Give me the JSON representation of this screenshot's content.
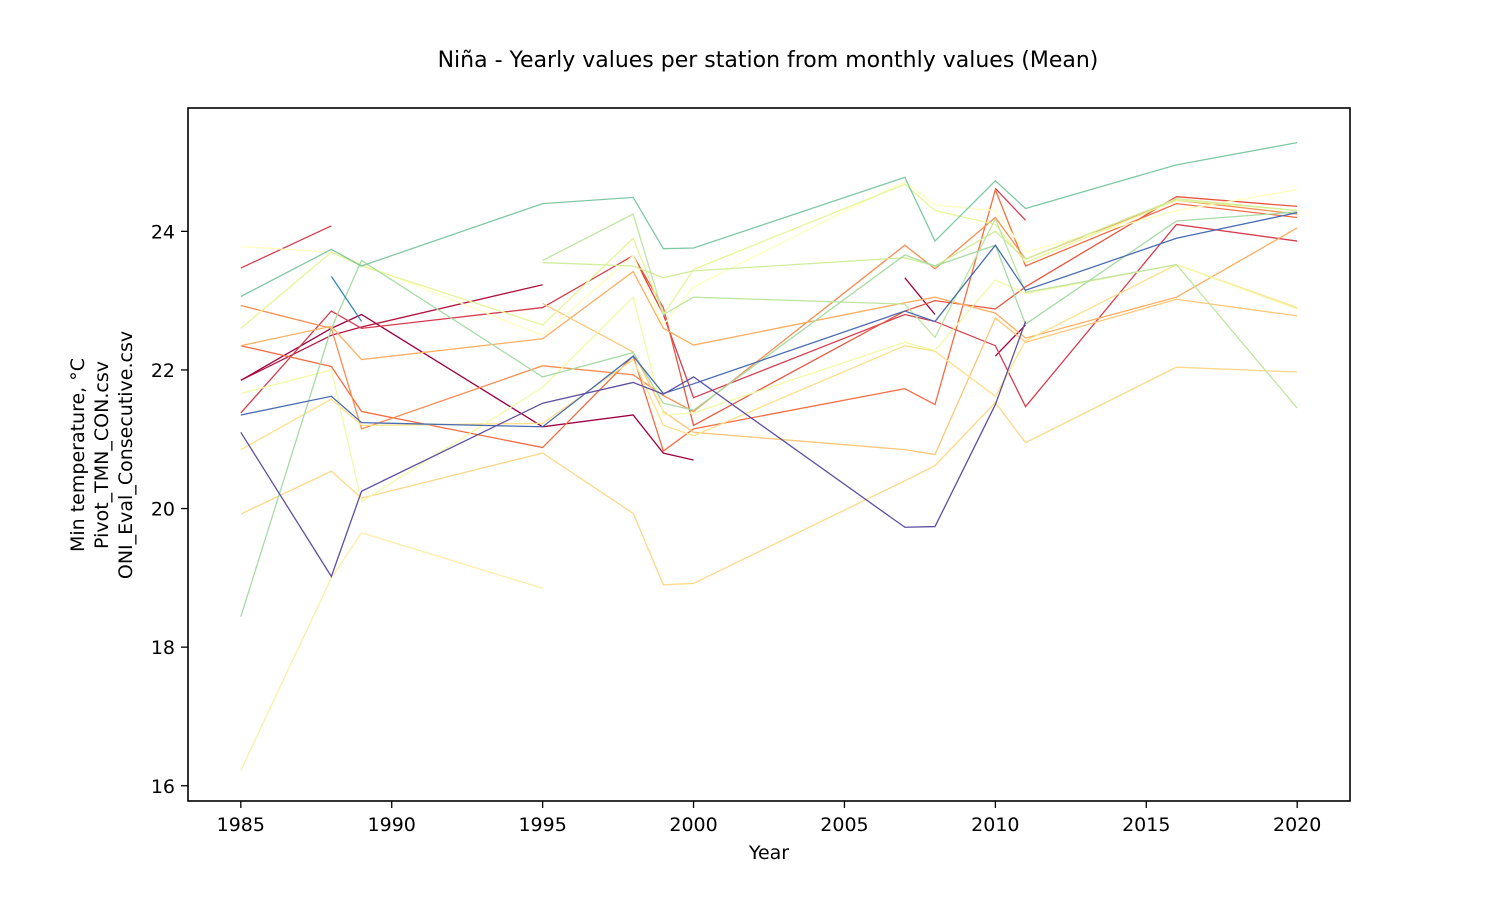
{
  "chart_data": {
    "type": "line",
    "title": "Niña - Yearly values per station from monthly values (Mean)",
    "xlabel": "Year",
    "ylabel_lines": [
      "Min temperature, °C",
      "Pivot_TMN_CON.csv",
      "ONI_Eval_Consecutive.csv"
    ],
    "xlim": [
      1983.25,
      2021.75
    ],
    "ylim": [
      15.78,
      25.78
    ],
    "xticks": [
      1985,
      1990,
      1995,
      2000,
      2005,
      2010,
      2015,
      2020
    ],
    "yticks": [
      16,
      18,
      20,
      22,
      24
    ],
    "grid": false,
    "series": [
      {
        "color": "#9e0142",
        "segments": [
          [
            [
              1985,
              21.85
            ],
            [
              1988,
              22.6
            ],
            [
              1989,
              22.8
            ],
            [
              1995,
              21.18
            ],
            [
              1998,
              21.35
            ],
            [
              1999,
              20.8
            ],
            [
              2000,
              20.7
            ]
          ],
          [
            [
              2007,
              23.33
            ],
            [
              2008,
              22.8
            ]
          ],
          [
            [
              2010,
              22.2
            ],
            [
              2011,
              22.65
            ]
          ]
        ]
      },
      {
        "color": "#b0123f",
        "segments": [
          [
            [
              1985,
              21.85
            ],
            [
              1988,
              22.5
            ],
            [
              1989,
              22.62
            ],
            [
              1995,
              23.23
            ]
          ]
        ]
      },
      {
        "color": "#d53e4f",
        "segments": [
          [
            [
              1985,
              23.47
            ],
            [
              1988,
              24.08
            ]
          ],
          [
            [
              1985,
              21.38
            ],
            [
              1988,
              22.85
            ],
            [
              1989,
              22.6
            ],
            [
              1995,
              22.9
            ],
            [
              1998,
              23.65
            ],
            [
              1999,
              22.8
            ],
            [
              2000,
              21.6
            ],
            [
              2007,
              22.8
            ],
            [
              2008,
              22.7
            ],
            [
              2010,
              22.35
            ],
            [
              2011,
              21.47
            ],
            [
              2016,
              24.1
            ],
            [
              2020,
              23.86
            ]
          ],
          [
            [
              2010,
              24.62
            ],
            [
              2011,
              24.16
            ]
          ]
        ]
      },
      {
        "color": "#e8553f",
        "segments": [
          [
            [
              1998,
              23.65
            ],
            [
              1999,
              22.9
            ],
            [
              2000,
              21.2
            ],
            [
              2007,
              22.85
            ],
            [
              2008,
              23.0
            ],
            [
              2010,
              22.88
            ],
            [
              2011,
              23.2
            ],
            [
              2016,
              24.5
            ],
            [
              2020,
              24.36
            ]
          ]
        ]
      },
      {
        "color": "#f46d43",
        "segments": [
          [
            [
              1985,
              22.35
            ],
            [
              1988,
              22.05
            ],
            [
              1989,
              21.4
            ],
            [
              1995,
              20.88
            ],
            [
              1998,
              22.2
            ],
            [
              1999,
              20.83
            ],
            [
              2000,
              21.15
            ],
            [
              2007,
              21.73
            ],
            [
              2008,
              21.5
            ],
            [
              2010,
              24.6
            ],
            [
              2011,
              23.5
            ],
            [
              2016,
              24.4
            ],
            [
              2020,
              24.2
            ]
          ]
        ]
      },
      {
        "color": "#f88d52",
        "segments": [
          [
            [
              1985,
              22.93
            ],
            [
              1988,
              22.6
            ],
            [
              1989,
              21.15
            ],
            [
              1995,
              22.06
            ],
            [
              1998,
              21.93
            ],
            [
              1999,
              21.63
            ],
            [
              2000,
              21.4
            ],
            [
              2007,
              23.8
            ],
            [
              2008,
              23.46
            ],
            [
              2010,
              24.2
            ],
            [
              2011,
              23.6
            ],
            [
              2016,
              24.45
            ],
            [
              2020,
              24.25
            ]
          ]
        ]
      },
      {
        "color": "#fdae61",
        "segments": [
          [
            [
              1985,
              22.35
            ],
            [
              1988,
              22.63
            ],
            [
              1989,
              22.15
            ],
            [
              1995,
              22.45
            ],
            [
              1998,
              23.42
            ],
            [
              1999,
              22.6
            ],
            [
              2000,
              22.36
            ],
            [
              2007,
              22.97
            ],
            [
              2008,
              23.05
            ],
            [
              2010,
              22.82
            ],
            [
              2011,
              22.46
            ],
            [
              2016,
              23.05
            ],
            [
              2020,
              24.05
            ]
          ]
        ]
      },
      {
        "color": "#fdc779",
        "segments": [
          [
            [
              1995,
              22.96
            ],
            [
              1998,
              22.26
            ],
            [
              1999,
              21.4
            ],
            [
              2000,
              21.1
            ],
            [
              2007,
              20.85
            ],
            [
              2008,
              20.78
            ],
            [
              2010,
              22.75
            ],
            [
              2011,
              22.4
            ],
            [
              2016,
              23.02
            ],
            [
              2020,
              22.78
            ]
          ]
        ]
      },
      {
        "color": "#fed88a",
        "segments": [
          [
            [
              1985,
              19.92
            ],
            [
              1988,
              20.54
            ],
            [
              1989,
              20.15
            ],
            [
              1995,
              20.8
            ],
            [
              1998,
              19.93
            ],
            [
              1999,
              18.9
            ],
            [
              2000,
              18.92
            ],
            [
              2007,
              20.4
            ],
            [
              2008,
              20.62
            ],
            [
              2010,
              21.53
            ],
            [
              2011,
              20.95
            ],
            [
              2016,
              22.04
            ],
            [
              2020,
              21.97
            ]
          ]
        ]
      },
      {
        "color": "#fee08b",
        "segments": [
          [
            [
              1985,
              20.85
            ],
            [
              1988,
              21.58
            ],
            [
              1989,
              21.2
            ],
            [
              1995,
              21.23
            ],
            [
              1998,
              22.15
            ],
            [
              1999,
              21.2
            ],
            [
              2000,
              21.05
            ],
            [
              2007,
              22.35
            ],
            [
              2008,
              22.27
            ],
            [
              2010,
              21.62
            ],
            [
              2011,
              22.42
            ],
            [
              2016,
              23.52
            ],
            [
              2020,
              22.9
            ]
          ]
        ]
      },
      {
        "color": "#feedaa",
        "segments": [
          [
            [
              1985,
              16.22
            ],
            [
              1988,
              19.0
            ],
            [
              1989,
              19.65
            ],
            [
              1995,
              18.85
            ]
          ]
        ]
      },
      {
        "color": "#ffffbf",
        "segments": [
          [
            [
              1985,
              23.78
            ],
            [
              1988,
              23.7
            ],
            [
              1995,
              22.5
            ],
            [
              1998,
              23.65
            ],
            [
              1999,
              22.65
            ],
            [
              2000,
              23.2
            ],
            [
              2007,
              24.72
            ],
            [
              2008,
              24.38
            ],
            [
              2010,
              24.3
            ],
            [
              2011,
              23.7
            ],
            [
              2016,
              24.3
            ],
            [
              2020,
              24.6
            ]
          ]
        ]
      },
      {
        "color": "#f2f9a8",
        "segments": [
          [
            [
              1985,
              21.66
            ],
            [
              1988,
              22.0
            ],
            [
              1989,
              20.1
            ],
            [
              1995,
              21.75
            ],
            [
              1998,
              23.05
            ],
            [
              1999,
              21.35
            ],
            [
              2000,
              21.38
            ],
            [
              2007,
              22.4
            ],
            [
              2008,
              22.28
            ],
            [
              2010,
              23.3
            ],
            [
              2011,
              23.1
            ],
            [
              2016,
              23.52
            ],
            [
              2020,
              22.88
            ]
          ]
        ]
      },
      {
        "color": "#e6f598",
        "segments": [
          [
            [
              1985,
              22.6
            ],
            [
              1988,
              23.7
            ],
            [
              1989,
              23.5
            ],
            [
              1995,
              22.65
            ],
            [
              1998,
              23.9
            ],
            [
              1999,
              22.8
            ],
            [
              2000,
              23.45
            ],
            [
              2007,
              24.68
            ],
            [
              2008,
              24.3
            ],
            [
              2010,
              24.1
            ],
            [
              2011,
              23.55
            ],
            [
              2016,
              24.45
            ],
            [
              2020,
              24.3
            ]
          ]
        ]
      },
      {
        "color": "#d1ec9c",
        "segments": [
          [
            [
              1995,
              23.55
            ],
            [
              1998,
              23.5
            ],
            [
              1999,
              23.33
            ],
            [
              2000,
              23.43
            ],
            [
              2007,
              23.62
            ],
            [
              2008,
              23.5
            ],
            [
              2010,
              24.0
            ],
            [
              2011,
              23.6
            ],
            [
              2016,
              24.47
            ],
            [
              2020,
              24.3
            ]
          ]
        ]
      },
      {
        "color": "#bfe5a0",
        "segments": [
          [
            [
              1995,
              23.58
            ],
            [
              1998,
              24.25
            ],
            [
              1999,
              22.8
            ],
            [
              2000,
              23.05
            ],
            [
              2007,
              22.95
            ],
            [
              2008,
              22.47
            ],
            [
              2010,
              24.18
            ],
            [
              2011,
              23.12
            ],
            [
              2016,
              23.52
            ],
            [
              2020,
              21.45
            ]
          ]
        ]
      },
      {
        "color": "#a6dba4",
        "segments": [
          [
            [
              1985,
              18.44
            ],
            [
              1988,
              22.6
            ],
            [
              1989,
              23.58
            ],
            [
              1995,
              21.9
            ],
            [
              1998,
              22.25
            ],
            [
              1999,
              21.52
            ],
            [
              2000,
              21.42
            ],
            [
              2007,
              23.66
            ],
            [
              2008,
              23.5
            ],
            [
              2010,
              23.8
            ],
            [
              2011,
              22.66
            ],
            [
              2016,
              24.15
            ],
            [
              2020,
              24.28
            ]
          ]
        ]
      },
      {
        "color": "#80c8a4",
        "segments": [
          [
            [
              1985,
              23.06
            ],
            [
              1988,
              23.74
            ],
            [
              1989,
              23.5
            ],
            [
              1995,
              24.4
            ],
            [
              1998,
              24.49
            ],
            [
              1999,
              23.75
            ],
            [
              2000,
              23.76
            ],
            [
              2007,
              24.78
            ],
            [
              2008,
              23.86
            ],
            [
              2010,
              24.73
            ],
            [
              2011,
              24.33
            ],
            [
              2016,
              24.96
            ],
            [
              2020,
              25.28
            ]
          ]
        ]
      },
      {
        "color": "#3288bd",
        "segments": [
          [
            [
              1988,
              23.35
            ],
            [
              1989,
              22.7
            ]
          ]
        ]
      },
      {
        "color": "#4a6cb0",
        "segments": [
          [
            [
              1985,
              21.35
            ],
            [
              1988,
              21.62
            ],
            [
              1989,
              21.24
            ],
            [
              1995,
              21.18
            ],
            [
              1998,
              22.2
            ],
            [
              1999,
              21.66
            ],
            [
              2000,
              21.8
            ],
            [
              2007,
              22.85
            ],
            [
              2008,
              22.7
            ],
            [
              2010,
              23.8
            ],
            [
              2011,
              23.15
            ],
            [
              2016,
              23.9
            ],
            [
              2020,
              24.27
            ]
          ]
        ]
      },
      {
        "color": "#5e4fa2",
        "segments": [
          [
            [
              1985,
              21.1
            ],
            [
              1988,
              19.02
            ],
            [
              1989,
              20.25
            ],
            [
              1995,
              21.52
            ],
            [
              1998,
              21.82
            ],
            [
              1999,
              21.65
            ],
            [
              2000,
              21.9
            ],
            [
              2007,
              19.73
            ],
            [
              2008,
              19.74
            ],
            [
              2010,
              21.5
            ],
            [
              2011,
              22.7
            ]
          ]
        ]
      }
    ]
  }
}
